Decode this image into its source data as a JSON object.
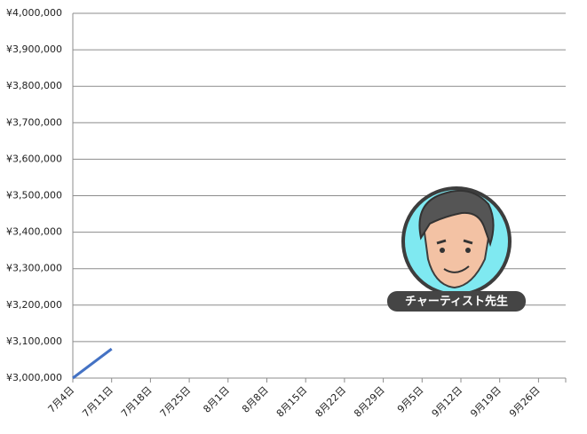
{
  "chart_data": {
    "type": "line",
    "categories": [
      "7月4日",
      "7月11日",
      "7月18日",
      "7月25日",
      "8月1日",
      "8月8日",
      "8月15日",
      "8月22日",
      "8月29日",
      "9月5日",
      "9月12日",
      "9月19日",
      "9月26日"
    ],
    "series": [
      {
        "color": "#4472c4",
        "values": [
          3000000,
          3080000,
          null,
          null,
          null,
          null,
          null,
          null,
          null,
          null,
          null,
          null,
          null
        ]
      }
    ],
    "ylim": [
      3000000,
      4000000
    ],
    "yticks": [
      {
        "value": 3000000,
        "label": "¥3,000,000"
      },
      {
        "value": 3100000,
        "label": "¥3,100,000"
      },
      {
        "value": 3200000,
        "label": "¥3,200,000"
      },
      {
        "value": 3300000,
        "label": "¥3,300,000"
      },
      {
        "value": 3400000,
        "label": "¥3,400,000"
      },
      {
        "value": 3500000,
        "label": "¥3,500,000"
      },
      {
        "value": 3600000,
        "label": "¥3,600,000"
      },
      {
        "value": 3700000,
        "label": "¥3,700,000"
      },
      {
        "value": 3800000,
        "label": "¥3,800,000"
      },
      {
        "value": 3900000,
        "label": "¥3,900,000"
      },
      {
        "value": 4000000,
        "label": "¥4,000,000"
      }
    ],
    "grid": true,
    "annotation": "チャーティスト先生"
  }
}
